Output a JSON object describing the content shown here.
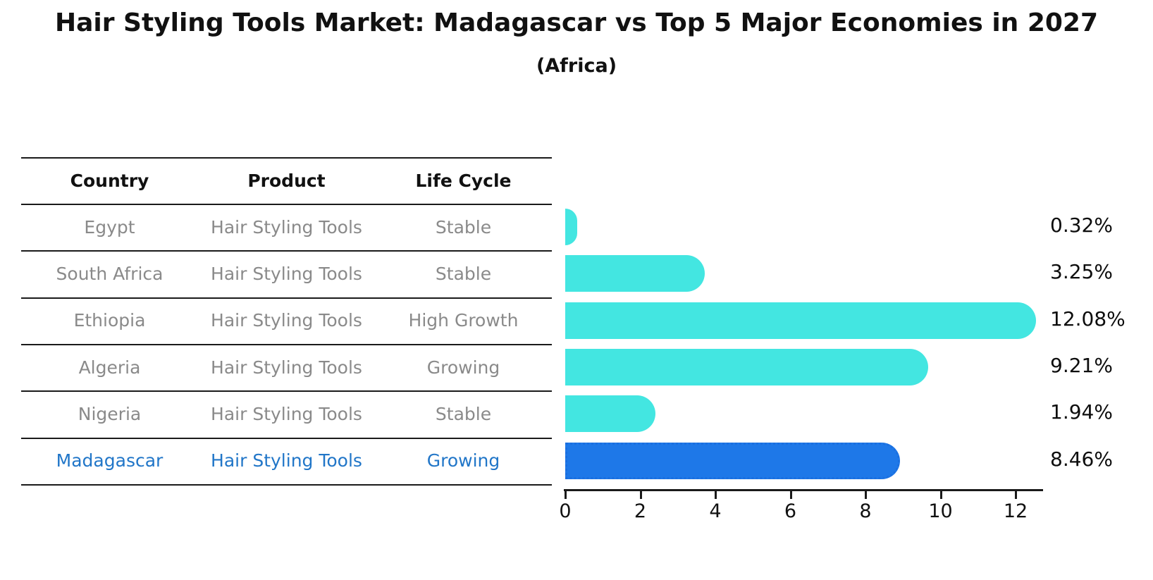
{
  "header": {
    "title": "Hair Styling Tools Market: Madagascar vs Top 5 Major Economies in 2027",
    "subtitle": "(Africa)"
  },
  "table": {
    "columns": [
      "Country",
      "Product",
      "Life Cycle"
    ],
    "rows": [
      {
        "country": "Egypt",
        "product": "Hair Styling Tools",
        "life_cycle": "Stable",
        "highlight": false
      },
      {
        "country": "South Africa",
        "product": "Hair Styling Tools",
        "life_cycle": "Stable",
        "highlight": false
      },
      {
        "country": "Ethiopia",
        "product": "Hair Styling Tools",
        "life_cycle": "High Growth",
        "highlight": false
      },
      {
        "country": "Algeria",
        "product": "Hair Styling Tools",
        "life_cycle": "Growing",
        "highlight": false
      },
      {
        "country": "Nigeria",
        "product": "Hair Styling Tools",
        "life_cycle": "Stable",
        "highlight": false
      },
      {
        "country": "Madagascar",
        "product": "Hair Styling Tools",
        "life_cycle": "Growing",
        "highlight": true
      }
    ]
  },
  "chart_data": {
    "type": "bar",
    "orientation": "horizontal",
    "title": "Hair Styling Tools Market: Madagascar vs Top 5 Major Economies in 2027",
    "subtitle": "(Africa)",
    "categories": [
      "Egypt",
      "South Africa",
      "Ethiopia",
      "Algeria",
      "Nigeria",
      "Madagascar"
    ],
    "values": [
      0.32,
      3.25,
      12.08,
      9.21,
      1.94,
      8.46
    ],
    "value_labels": [
      "0.32%",
      "3.25%",
      "12.08%",
      "9.21%",
      "1.94%",
      "8.46%"
    ],
    "xlabel": "",
    "ylabel": "",
    "xlim": [
      0,
      12.8
    ],
    "x_ticks": [
      0,
      2,
      4,
      6,
      8,
      10,
      12
    ],
    "grid": false,
    "legend": false,
    "highlight_index": 5,
    "colors": {
      "bar": "#43e6e1",
      "highlight_bar": "#1e78e8",
      "highlight_border": "#1a6fe0",
      "highlight_text": "#2176c8",
      "row_text": "#8a8a8a",
      "axis": "#1a1a1a",
      "title_text": "#111111"
    }
  }
}
